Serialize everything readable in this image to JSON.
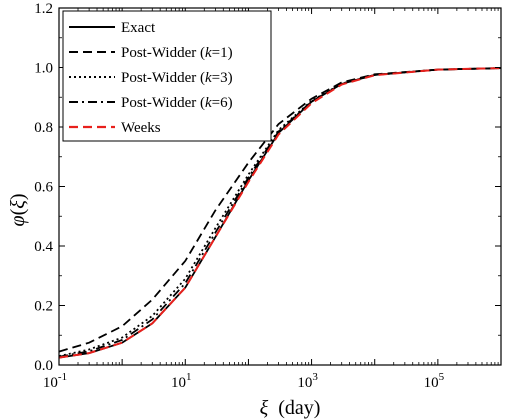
{
  "chart_data": {
    "type": "line",
    "xscale": "log",
    "xlim": [
      0.1,
      1000000
    ],
    "ylim": [
      0.0,
      1.2
    ],
    "xlabel": {
      "symbol": "ξ",
      "unit": "(day)"
    },
    "ylabel": {
      "symbol": "φ",
      "open": "(",
      "arg": "ξ",
      "close": ")"
    },
    "x_ticks": [
      {
        "base": "10",
        "exp": "-1"
      },
      {
        "base": "10",
        "exp": "1"
      },
      {
        "base": "10",
        "exp": "3"
      },
      {
        "base": "10",
        "exp": "5"
      }
    ],
    "y_ticks": [
      "0.0",
      "0.2",
      "0.4",
      "0.6",
      "0.8",
      "1.0",
      "1.2"
    ],
    "legend_position": "top-left",
    "series": [
      {
        "name": "Exact",
        "color": "#000000",
        "style": "solid",
        "x": [
          0.1,
          0.3,
          1,
          3,
          10,
          30,
          100,
          300,
          1000,
          3000,
          10000,
          100000,
          1000000
        ],
        "y": [
          0.025,
          0.04,
          0.075,
          0.14,
          0.26,
          0.43,
          0.62,
          0.78,
          0.885,
          0.945,
          0.975,
          0.993,
          0.998
        ]
      },
      {
        "name": "Post-Widder (k=1)",
        "label_main": "Post-Widder (",
        "label_k": "k",
        "label_tail": "=1)",
        "color": "#000000",
        "style": "dashed",
        "x": [
          0.1,
          0.3,
          1,
          3,
          10,
          30,
          100,
          300,
          1000,
          3000,
          10000,
          100000,
          1000000
        ],
        "y": [
          0.045,
          0.075,
          0.13,
          0.22,
          0.35,
          0.52,
          0.68,
          0.81,
          0.895,
          0.95,
          0.977,
          0.993,
          0.998
        ]
      },
      {
        "name": "Post-Widder (k=3)",
        "label_main": "Post-Widder (",
        "label_k": "k",
        "label_tail": "=3)",
        "color": "#000000",
        "style": "dotted",
        "x": [
          0.1,
          0.3,
          1,
          3,
          10,
          30,
          100,
          300,
          1000,
          3000,
          10000,
          100000,
          1000000
        ],
        "y": [
          0.03,
          0.052,
          0.092,
          0.165,
          0.29,
          0.46,
          0.64,
          0.79,
          0.888,
          0.946,
          0.975,
          0.993,
          0.998
        ]
      },
      {
        "name": "Post-Widder (k=6)",
        "label_main": "Post-Widder (",
        "label_k": "k",
        "label_tail": "=6)",
        "color": "#000000",
        "style": "dashdot",
        "x": [
          0.1,
          0.3,
          1,
          3,
          10,
          30,
          100,
          300,
          1000,
          3000,
          10000,
          100000,
          1000000
        ],
        "y": [
          0.028,
          0.046,
          0.084,
          0.153,
          0.275,
          0.445,
          0.63,
          0.785,
          0.886,
          0.945,
          0.975,
          0.993,
          0.998
        ]
      },
      {
        "name": "Weeks",
        "color": "#e8201c",
        "style": "dashed",
        "x": [
          0.1,
          0.3,
          1,
          3,
          10,
          30,
          100,
          300,
          1000,
          3000,
          10000,
          100000,
          1000000
        ],
        "y": [
          0.025,
          0.04,
          0.075,
          0.14,
          0.26,
          0.43,
          0.615,
          0.775,
          0.88,
          0.943,
          0.974,
          0.993,
          0.998
        ]
      }
    ]
  }
}
